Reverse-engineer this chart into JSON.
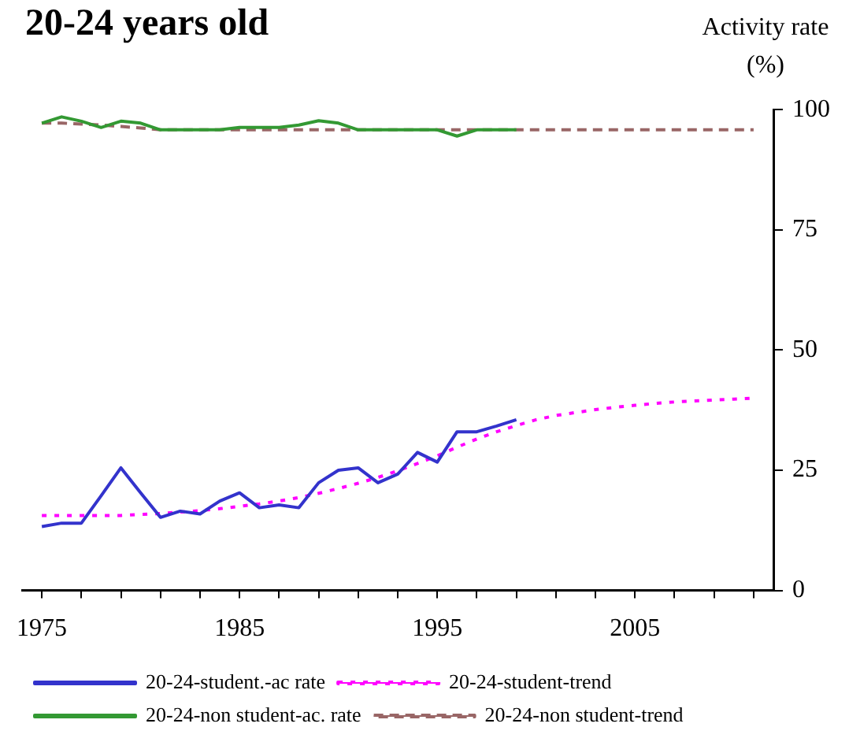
{
  "chart_data": {
    "type": "line",
    "title": "20-24 years old",
    "ylabel": "Activity rate (%)",
    "xlim": [
      1974,
      2012
    ],
    "xticks": [
      1975,
      {
        "value": 1977,
        "label": null
      },
      {
        "value": 1979,
        "label": null
      },
      {
        "value": 1981,
        "label": null
      },
      {
        "value": 1983,
        "label": null
      },
      1985,
      {
        "value": 1987,
        "label": null
      },
      {
        "value": 1989,
        "label": null
      },
      {
        "value": 1991,
        "label": null
      },
      {
        "value": 1993,
        "label": null
      },
      1995,
      {
        "value": 1997,
        "label": null
      },
      {
        "value": 1999,
        "label": null
      },
      {
        "value": 2001,
        "label": null
      },
      {
        "value": 2003,
        "label": null
      },
      2005,
      {
        "value": 2007,
        "label": null
      },
      {
        "value": 2009,
        "label": null
      },
      {
        "value": 2011,
        "label": null
      }
    ],
    "ylim": [
      0,
      100
    ],
    "yticks": [
      0,
      25,
      50,
      75,
      100
    ],
    "grid": false,
    "legend": "bottom",
    "marker": "none",
    "series": [
      {
        "name": "20-24-student.-ac rate",
        "color": "#3333cc",
        "line_style": "solid",
        "x": [
          1975,
          1976,
          1977,
          1978,
          1979,
          1980,
          1981,
          1982,
          1983,
          1984,
          1985,
          1986,
          1987,
          1988,
          1989,
          1990,
          1991,
          1992,
          1993,
          1994,
          1995,
          1996,
          1997,
          1998,
          1999
        ],
        "values": [
          13.3,
          14.0,
          14.0,
          19.7,
          25.5,
          20.3,
          15.2,
          16.5,
          15.9,
          18.6,
          20.3,
          17.2,
          17.8,
          17.2,
          22.4,
          25.0,
          25.5,
          22.4,
          24.2,
          28.7,
          26.7,
          33.0,
          33.0,
          34.2,
          35.5
        ]
      },
      {
        "name": "20-24-student-trend",
        "color": "#ff00ff",
        "line_style": "dotted",
        "x": [
          1975,
          1976,
          1977,
          1978,
          1979,
          1980,
          1981,
          1982,
          1983,
          1984,
          1985,
          1986,
          1987,
          1988,
          1989,
          1990,
          1991,
          1992,
          1993,
          1994,
          1995,
          1996,
          1997,
          1998,
          1999,
          2000,
          2001,
          2002,
          2003,
          2004,
          2005,
          2006,
          2007,
          2008,
          2009,
          2010,
          2011
        ],
        "values": [
          15.6,
          15.6,
          15.6,
          15.6,
          15.6,
          15.8,
          16.0,
          16.3,
          16.6,
          17.0,
          17.5,
          18.0,
          18.6,
          19.3,
          20.2,
          21.2,
          22.3,
          23.5,
          24.9,
          26.4,
          28.0,
          29.8,
          31.5,
          33.0,
          34.3,
          35.5,
          36.4,
          37.0,
          37.6,
          38.1,
          38.5,
          38.9,
          39.2,
          39.4,
          39.6,
          39.8,
          40.0
        ]
      },
      {
        "name": "20-24-non student-ac. rate",
        "color": "#339933",
        "line_style": "solid",
        "x": [
          1975,
          1976,
          1977,
          1978,
          1979,
          1980,
          1981,
          1982,
          1983,
          1984,
          1985,
          1986,
          1987,
          1988,
          1989,
          1990,
          1991,
          1992,
          1993,
          1994,
          1995,
          1996,
          1997,
          1998,
          1999
        ],
        "values": [
          97.2,
          98.5,
          97.6,
          96.3,
          97.6,
          97.2,
          95.8,
          95.8,
          95.8,
          95.8,
          96.3,
          96.3,
          96.3,
          96.8,
          97.7,
          97.2,
          95.8,
          95.8,
          95.8,
          95.8,
          95.8,
          94.5,
          95.8,
          95.8,
          95.8
        ]
      },
      {
        "name": "20-24-non student-trend",
        "color": "#996666",
        "line_style": "dashed",
        "x": [
          1975,
          1976,
          1977,
          1978,
          1979,
          1980,
          1981,
          1985,
          1990,
          1995,
          2000,
          2005,
          2011
        ],
        "values": [
          97.2,
          97.2,
          97.0,
          96.8,
          96.5,
          96.2,
          95.8,
          95.8,
          95.8,
          95.8,
          95.8,
          95.8,
          95.8
        ]
      }
    ]
  }
}
